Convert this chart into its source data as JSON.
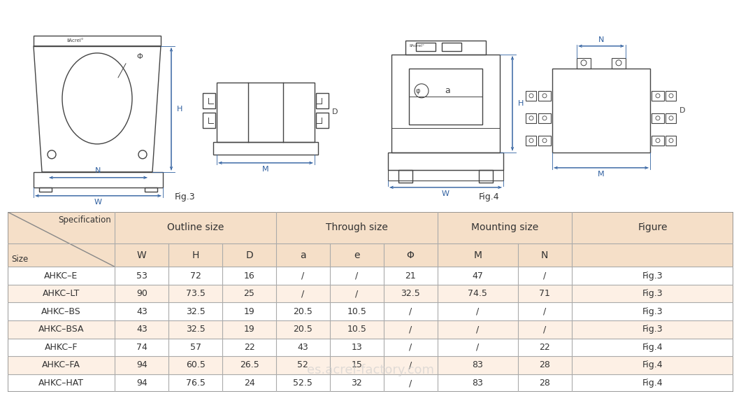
{
  "fig_area_bg": "#ffffff",
  "table_header_bg": "#f5dfc8",
  "table_row_alt_bg": "#fdf0e5",
  "table_row_white_bg": "#ffffff",
  "rows": [
    [
      "AHKC–E",
      "53",
      "72",
      "16",
      "/",
      "/",
      "21",
      "47",
      "/",
      "Fig.3"
    ],
    [
      "AHKC–LT",
      "90",
      "73.5",
      "25",
      "/",
      "/",
      "32.5",
      "74.5",
      "71",
      "Fig.3"
    ],
    [
      "AHKC–BS",
      "43",
      "32.5",
      "19",
      "20.5",
      "10.5",
      "/",
      "/",
      "/",
      "Fig.3"
    ],
    [
      "AHKC–BSA",
      "43",
      "32.5",
      "19",
      "20.5",
      "10.5",
      "/",
      "/",
      "/",
      "Fig.3"
    ],
    [
      "AHKC–F",
      "74",
      "57",
      "22",
      "43",
      "13",
      "/",
      "/",
      "22",
      "Fig.4"
    ],
    [
      "AHKC–FA",
      "94",
      "60.5",
      "26.5",
      "52",
      "15",
      "/",
      "83",
      "28",
      "Fig.4"
    ],
    [
      "AHKC–HAT",
      "94",
      "76.5",
      "24",
      "52.5",
      "32",
      "/",
      "83",
      "28",
      "Fig.4"
    ]
  ],
  "watermark": "es.acrel-factory.com",
  "line_color": "#444444",
  "dim_color": "#3060a0",
  "text_color": "#333333"
}
